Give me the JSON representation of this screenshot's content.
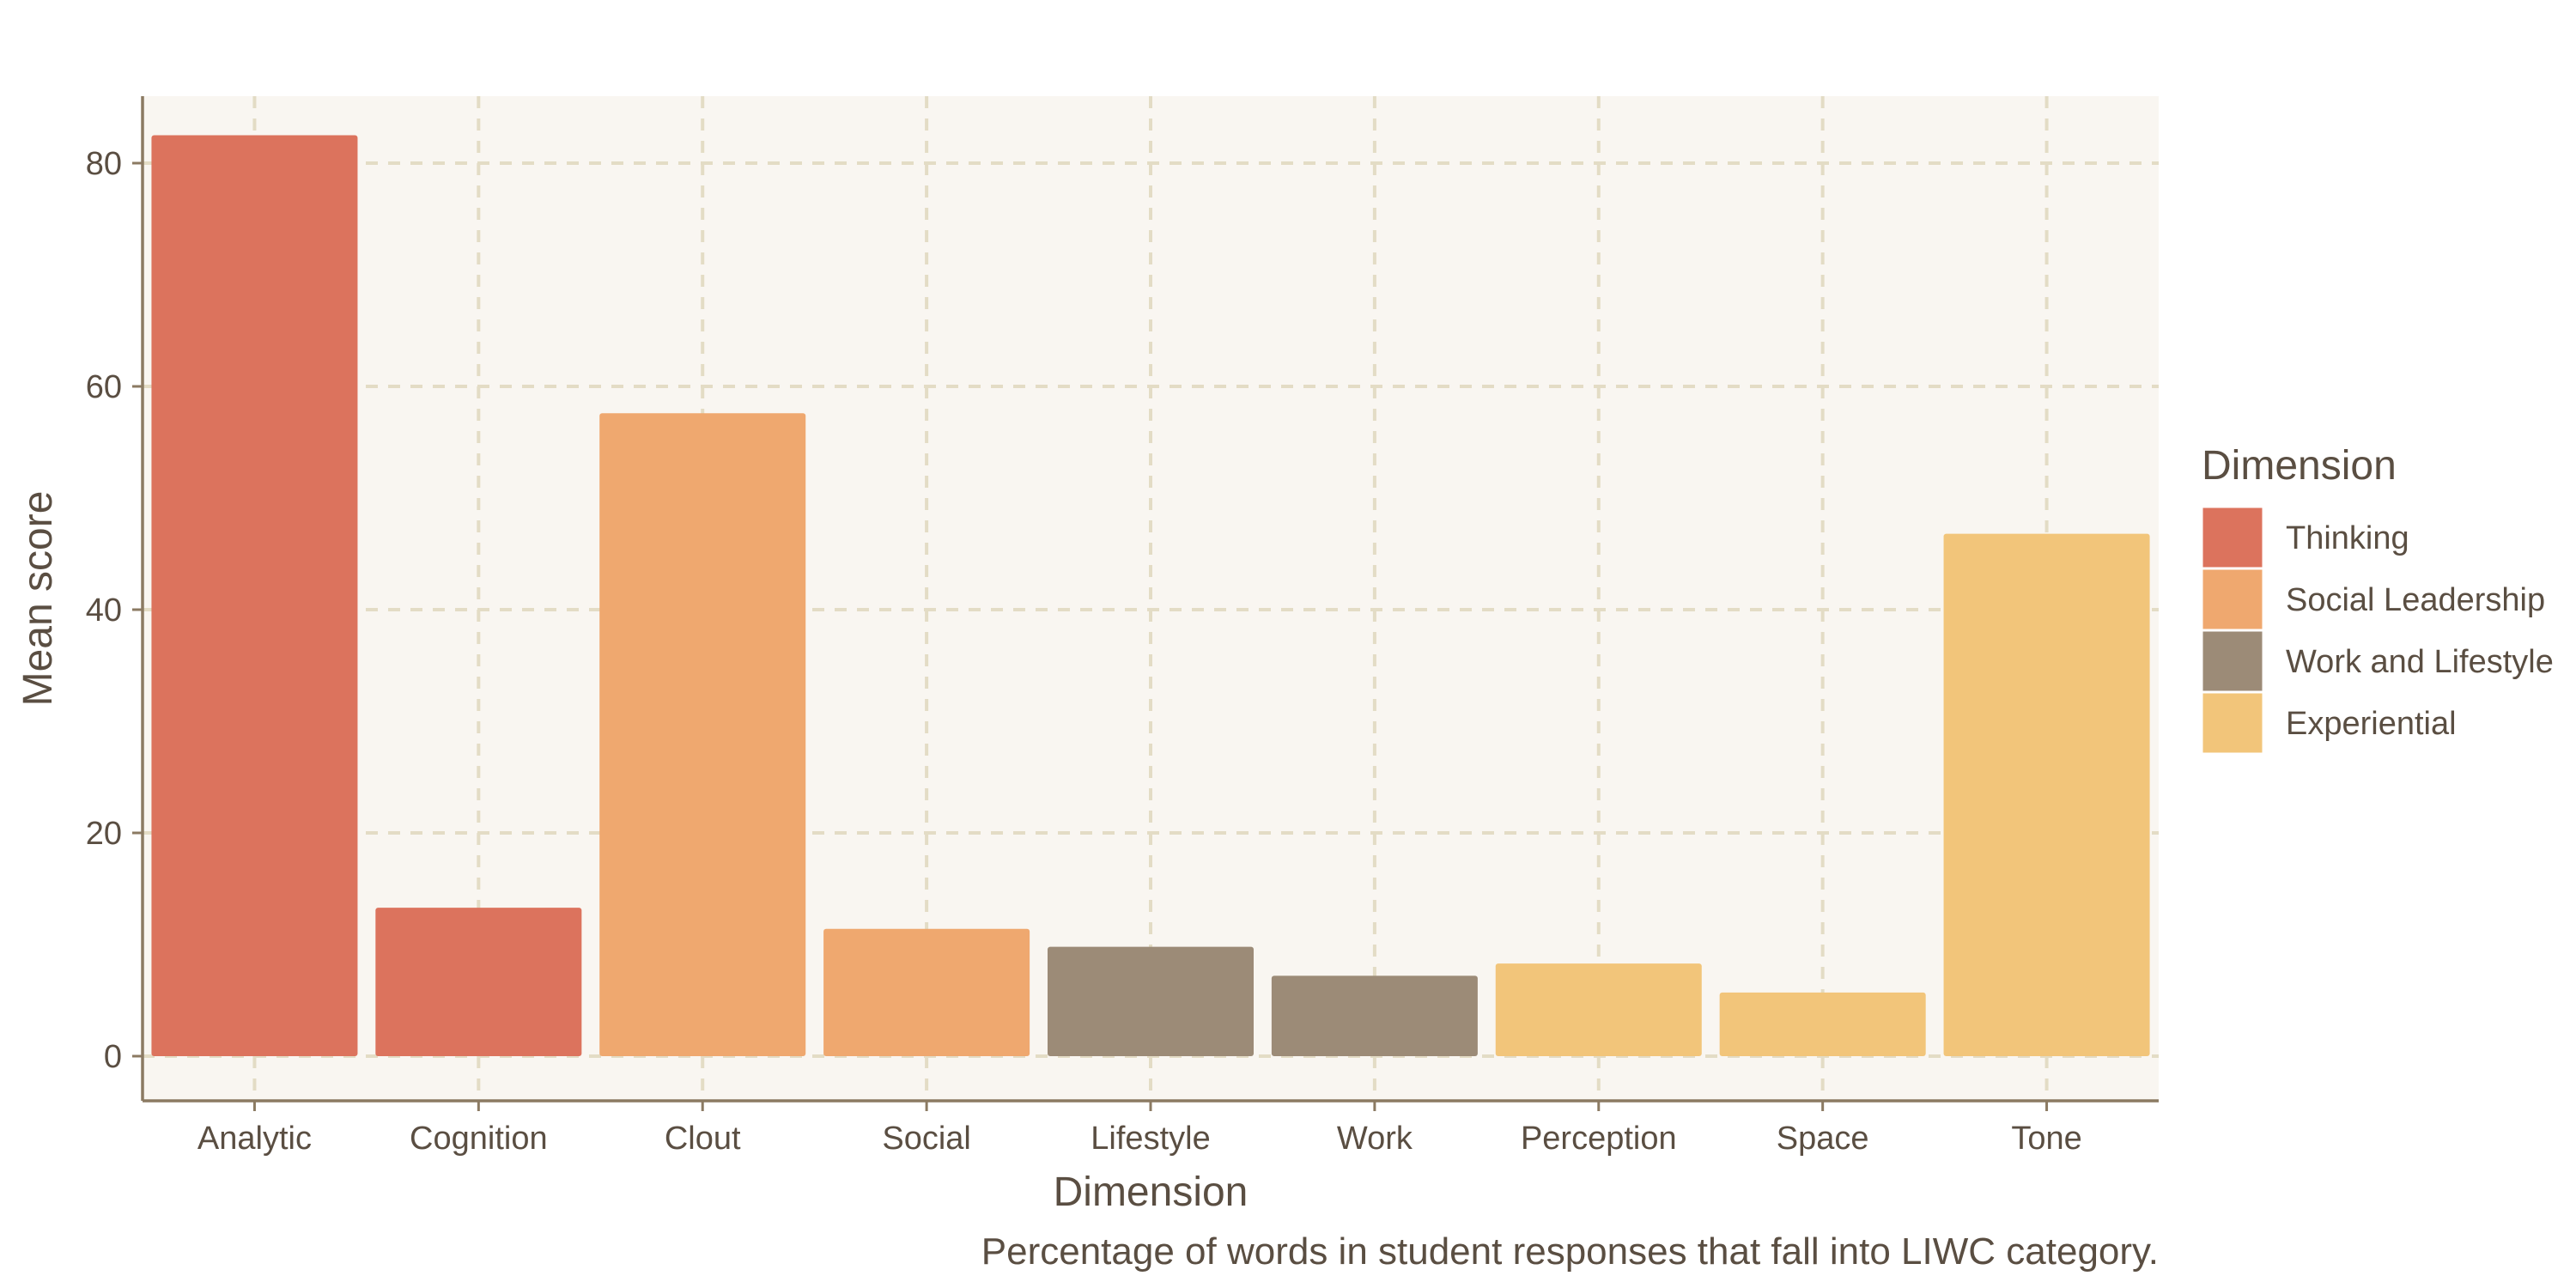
{
  "chart_data": {
    "type": "bar",
    "categories": [
      "Analytic",
      "Cognition",
      "Clout",
      "Social",
      "Lifestyle",
      "Work",
      "Perception",
      "Space",
      "Tone"
    ],
    "values": [
      82.5,
      13.3,
      57.6,
      11.4,
      9.8,
      7.2,
      8.3,
      5.7,
      46.8
    ],
    "groups": [
      "Thinking",
      "Thinking",
      "Social Leadership",
      "Social Leadership",
      "Work and Lifestyle",
      "Work and Lifestyle",
      "Experiential",
      "Experiential",
      "Experiential"
    ],
    "xlabel": "Dimension",
    "ylabel": "Mean score",
    "caption": "Percentage of words in student responses that fall into LIWC category.",
    "ylim": [
      -4,
      86
    ],
    "yticks": [
      0,
      20,
      40,
      60,
      80
    ],
    "grid": true,
    "legend": {
      "title": "Dimension",
      "placement": "right",
      "items": [
        {
          "label": "Thinking",
          "color": "#dc735d"
        },
        {
          "label": "Social Leadership",
          "color": "#efa86f"
        },
        {
          "label": "Work and Lifestyle",
          "color": "#9c8b77"
        },
        {
          "label": "Experiential",
          "color": "#f2c57a"
        }
      ]
    }
  },
  "colors": {
    "panel_background": "#f9f6f1",
    "grid": "#e3dcc5",
    "axis": "#8b7a62",
    "text": "#5a4e42"
  }
}
